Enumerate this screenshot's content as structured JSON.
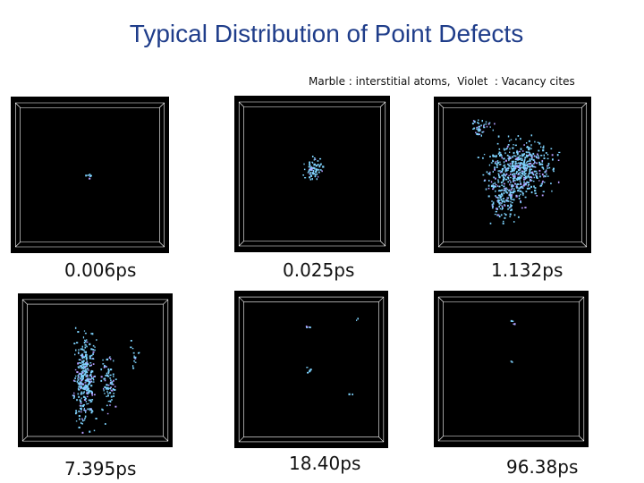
{
  "slide": {
    "title": "Typical Distribution of Point Defects",
    "legend": "Marble : interstitial atoms,  Violet  : Vacancy cites"
  },
  "colors": {
    "title": "#1f3d8a",
    "interstitial": "#7fd4ff",
    "vacancy": "#b49cff",
    "background": "#000000"
  },
  "panels": [
    {
      "caption": "0.006ps",
      "spread": "tiny"
    },
    {
      "caption": "0.025ps",
      "spread": "small"
    },
    {
      "caption": "1.132ps",
      "spread": "large"
    },
    {
      "caption": "7.395ps",
      "spread": "vertical"
    },
    {
      "caption": "18.40ps",
      "spread": "sparse"
    },
    {
      "caption": "96.38ps",
      "spread": "minimal"
    }
  ]
}
